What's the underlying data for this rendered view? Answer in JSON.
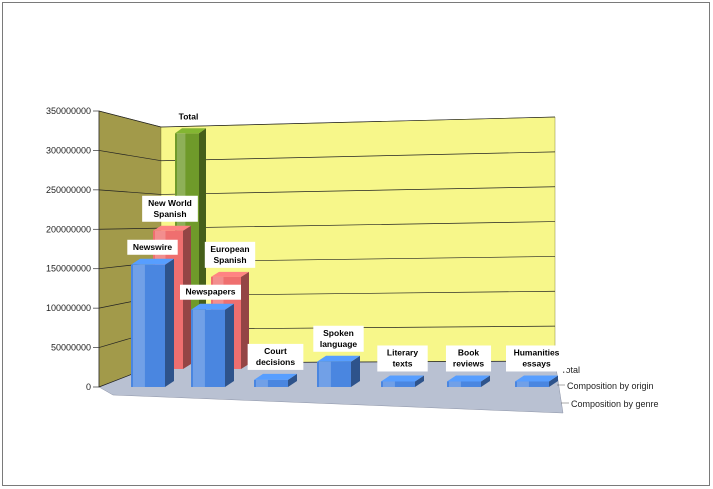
{
  "chart_data": {
    "type": "bar",
    "title": "",
    "xlabel": "",
    "ylabel": "",
    "ylim": [
      0,
      350000000
    ],
    "yticks": [
      "0",
      "50000000",
      "100000000",
      "150000000",
      "200000000",
      "250000000",
      "300000000",
      "350000000"
    ],
    "depth_labels": [
      "Total",
      "Composition by origin",
      "Composition by genre"
    ],
    "grid": true,
    "colors": {
      "genre": "#4a86e0",
      "origin": "#ef6f6f",
      "total": "#6f9a2a",
      "wall": "#f7f78a",
      "side_wall": "#a29a4a",
      "floor": "#b9c1d2"
    },
    "series": [
      {
        "name": "Composition by genre",
        "categories": [
          "Newswire",
          "Newspapers",
          "Court decisions",
          "Spoken language",
          "Literary texts",
          "Book reviews",
          "Humanities essays"
        ],
        "values": [
          155000000,
          98000000,
          9000000,
          32000000,
          7000000,
          7000000,
          7000000
        ]
      },
      {
        "name": "Composition by origin",
        "categories": [
          "New World Spanish",
          "European Spanish"
        ],
        "values": [
          192000000,
          128000000
        ]
      },
      {
        "name": "Total",
        "categories": [
          "Total"
        ],
        "values": [
          318000000
        ]
      }
    ]
  }
}
